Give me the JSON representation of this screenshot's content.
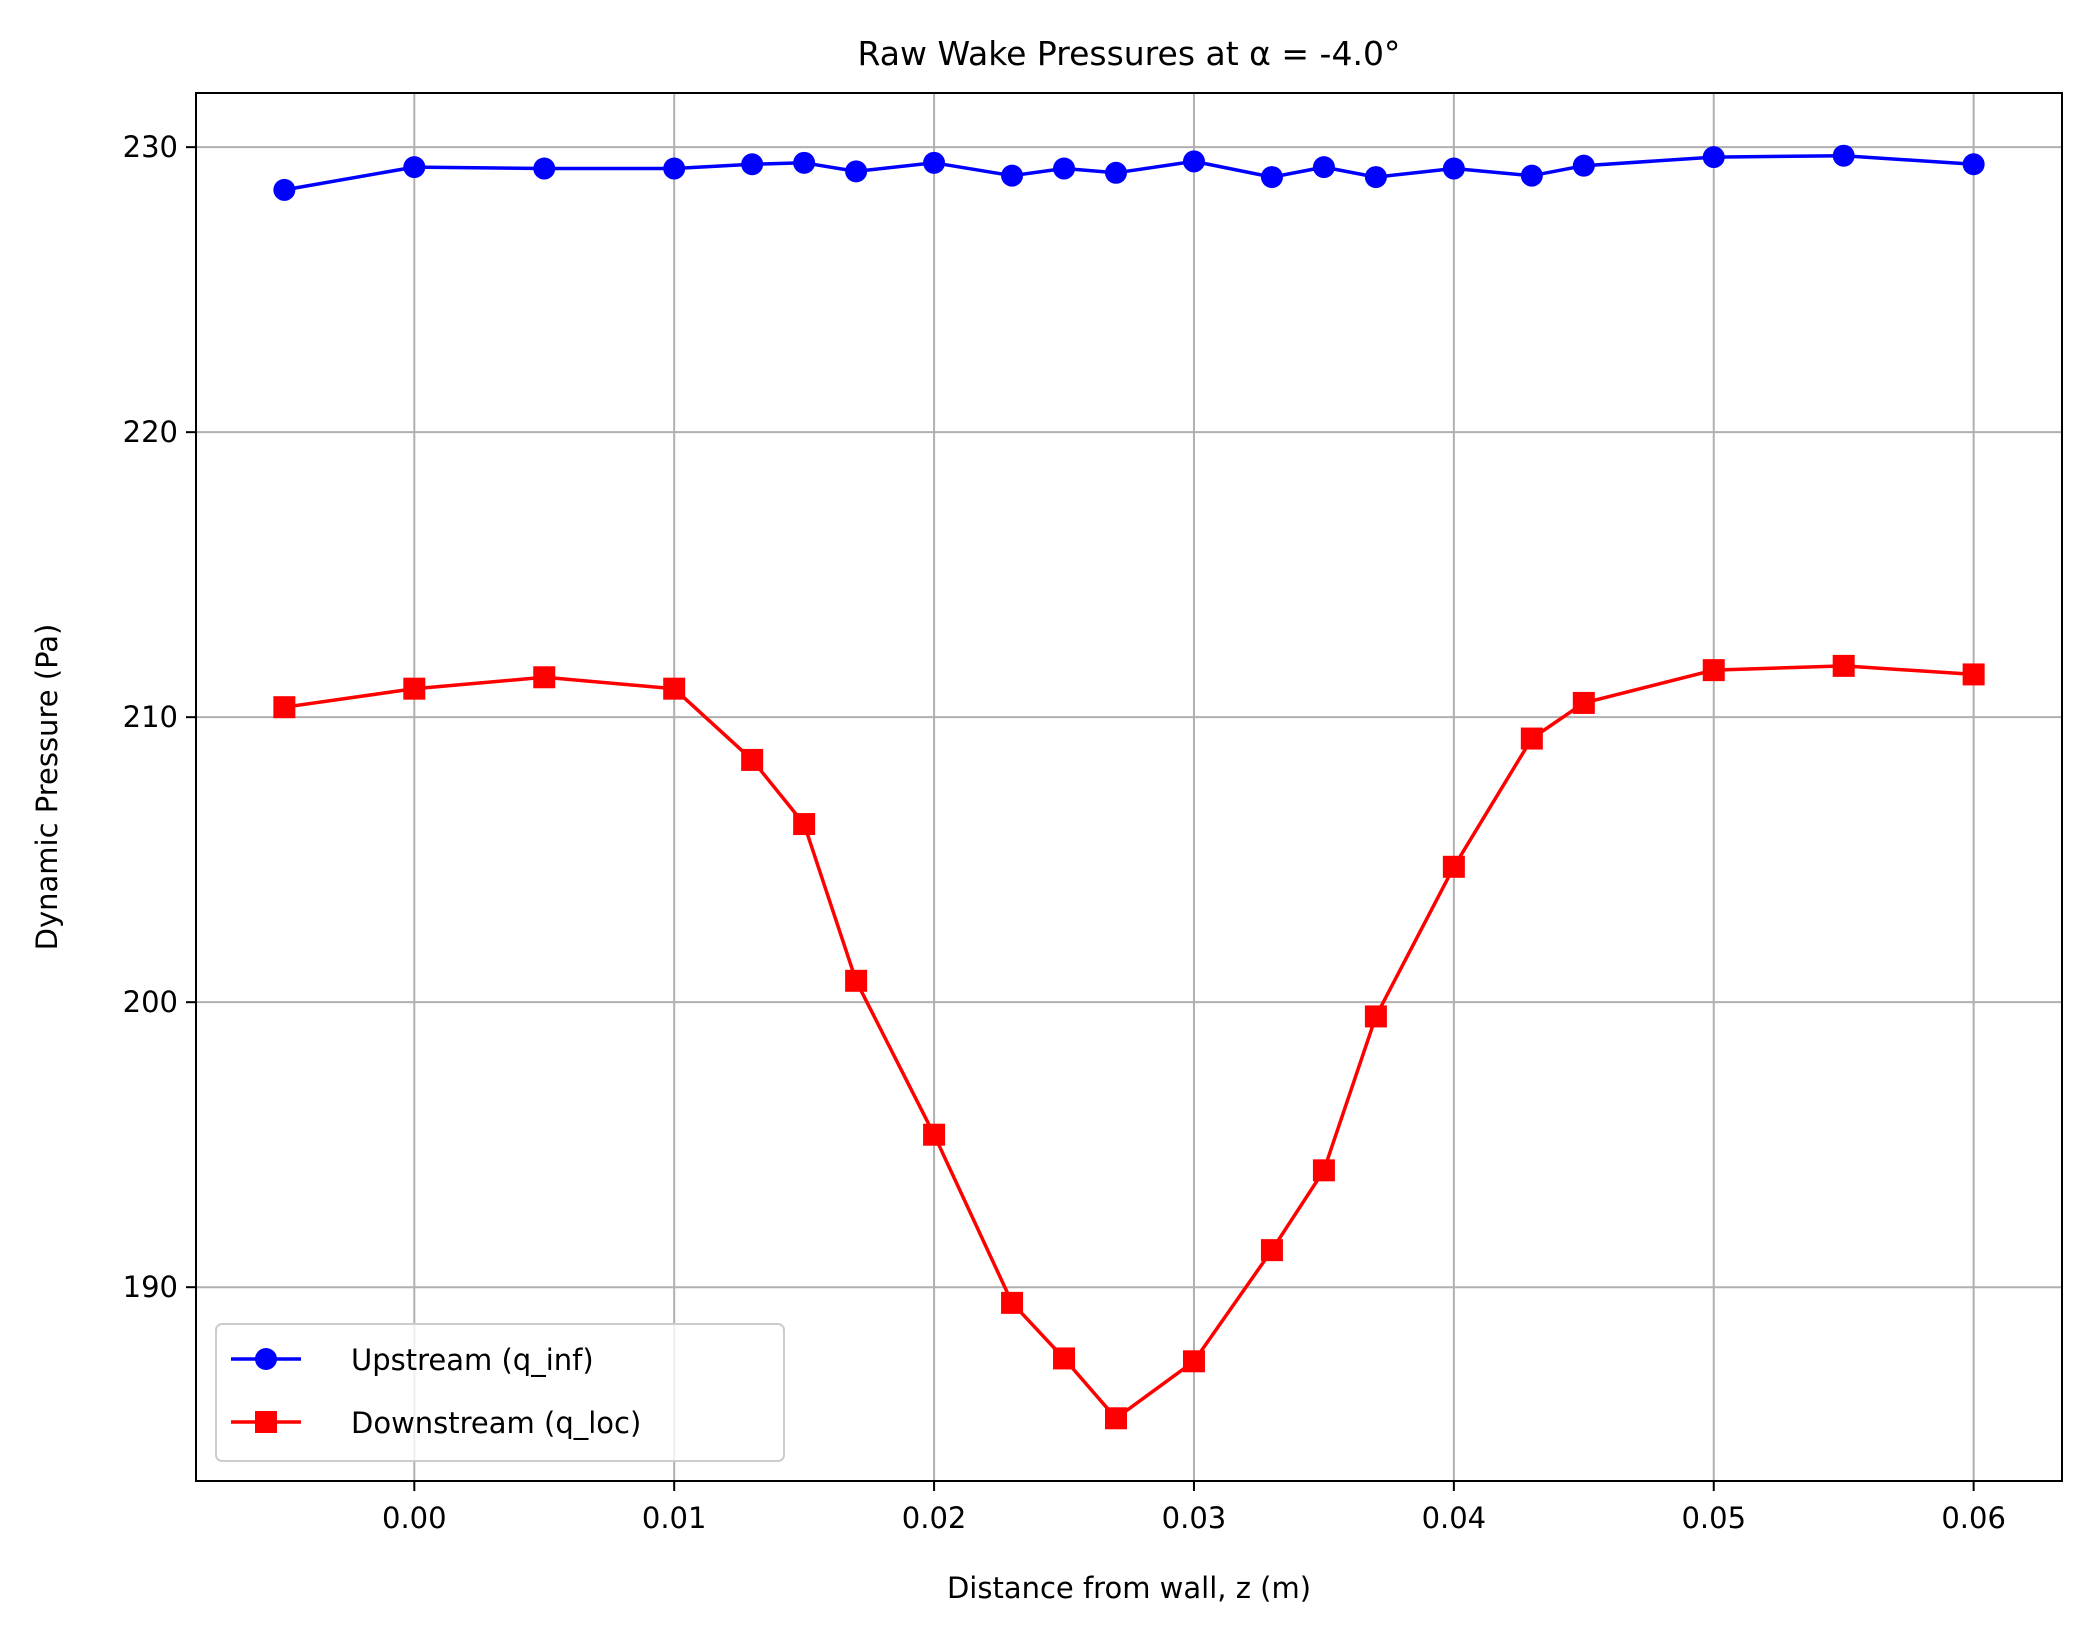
{
  "chart_data": {
    "type": "line",
    "title": "Raw Wake Pressures at α = -4.0°",
    "xlabel": "Distance from wall, z (m)",
    "ylabel": "Dynamic Pressure (Pa)",
    "xlim": [
      -0.0084,
      0.0634
    ],
    "ylim": [
      183.2,
      231.9
    ],
    "xticks": [
      0.0,
      0.01,
      0.02,
      0.03,
      0.04,
      0.05,
      0.06
    ],
    "xtick_labels": [
      "0.00",
      "0.01",
      "0.02",
      "0.03",
      "0.04",
      "0.05",
      "0.06"
    ],
    "yticks": [
      190,
      200,
      210,
      220,
      230
    ],
    "ytick_labels": [
      "190",
      "200",
      "210",
      "220",
      "230"
    ],
    "grid": true,
    "legend_position": "lower-left",
    "x": [
      -0.005,
      0.0,
      0.005,
      0.01,
      0.013,
      0.015,
      0.017,
      0.02,
      0.023,
      0.025,
      0.027,
      0.03,
      0.033,
      0.035,
      0.037,
      0.04,
      0.043,
      0.045,
      0.05,
      0.055,
      0.06
    ],
    "series": [
      {
        "name": "Upstream (q_inf)",
        "color": "#0000ff",
        "marker": "circle",
        "values": [
          228.5,
          229.3,
          229.25,
          229.25,
          229.4,
          229.45,
          229.15,
          229.45,
          229.0,
          229.25,
          229.1,
          229.5,
          228.95,
          229.3,
          228.95,
          229.25,
          229.0,
          229.35,
          229.65,
          229.7,
          229.4
        ]
      },
      {
        "name": "Downstream (q_loc)",
        "color": "#ff0000",
        "marker": "square",
        "values": [
          210.35,
          211.0,
          211.4,
          211.0,
          208.5,
          206.25,
          200.75,
          195.35,
          189.45,
          187.5,
          185.4,
          187.4,
          191.3,
          194.1,
          199.5,
          204.75,
          209.25,
          210.5,
          211.65,
          211.8,
          211.5
        ]
      }
    ]
  }
}
